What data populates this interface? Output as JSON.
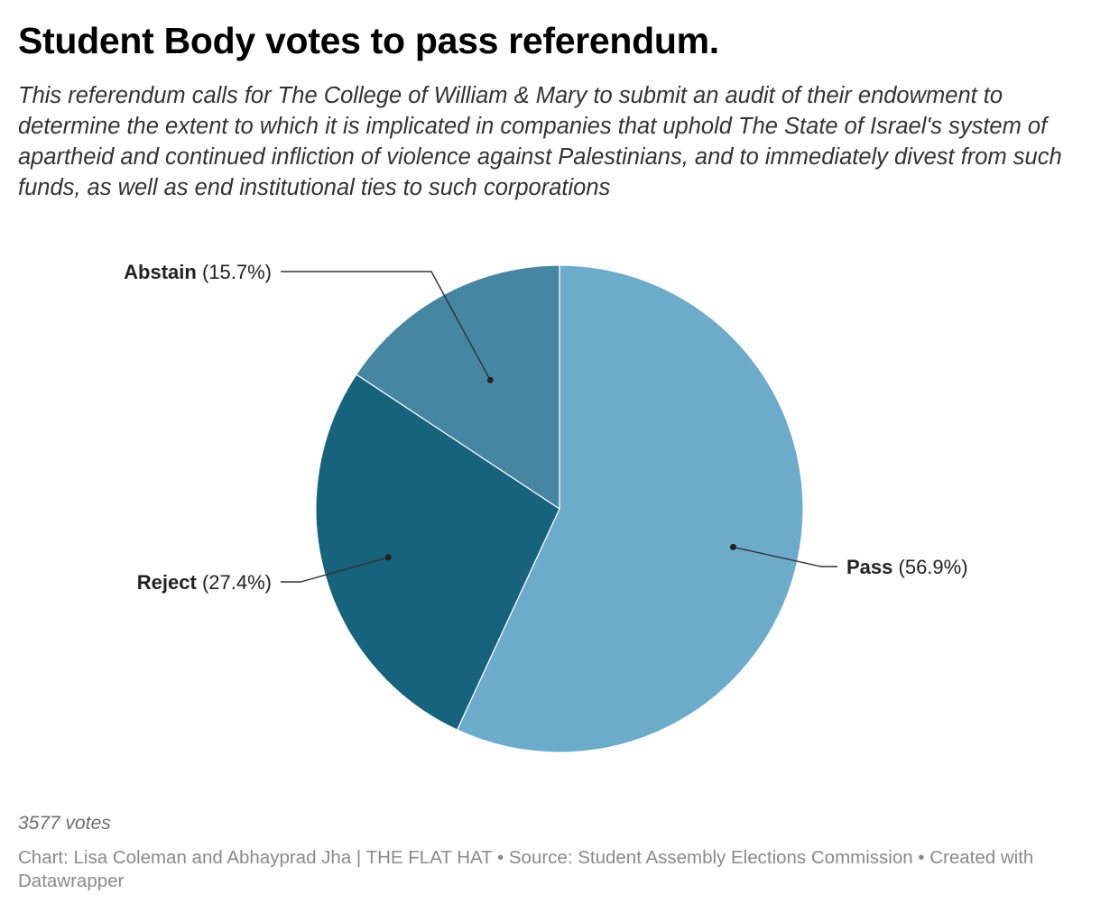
{
  "header": {
    "title": "Student Body votes to pass referendum.",
    "subtitle": "This referendum calls for The College of William & Mary to submit an audit of their endowment to determine the extent to which it is implicated in companies that uphold The State of Israel's system of apartheid and continued infliction of violence against Palestinians, and to immediately divest from such funds, as well as end institutional ties to such corporations"
  },
  "chart_data": {
    "type": "pie",
    "title": "Student Body votes to pass referendum.",
    "start": "top, clockwise",
    "slices": [
      {
        "label": "Pass",
        "value": 56.9,
        "display": "(56.9%)",
        "color": "#6cabca"
      },
      {
        "label": "Reject",
        "value": 27.4,
        "display": "(27.4%)",
        "color": "#17627c"
      },
      {
        "label": "Abstain",
        "value": 15.7,
        "display": "(15.7%)",
        "color": "#4686a3"
      }
    ]
  },
  "notes": {
    "votes": "3577 votes"
  },
  "footer": {
    "credit": "Chart: Lisa Coleman and Abhayprad Jha | THE FLAT HAT • Source: Student Assembly Elections Commission • Created with Datawrapper"
  }
}
